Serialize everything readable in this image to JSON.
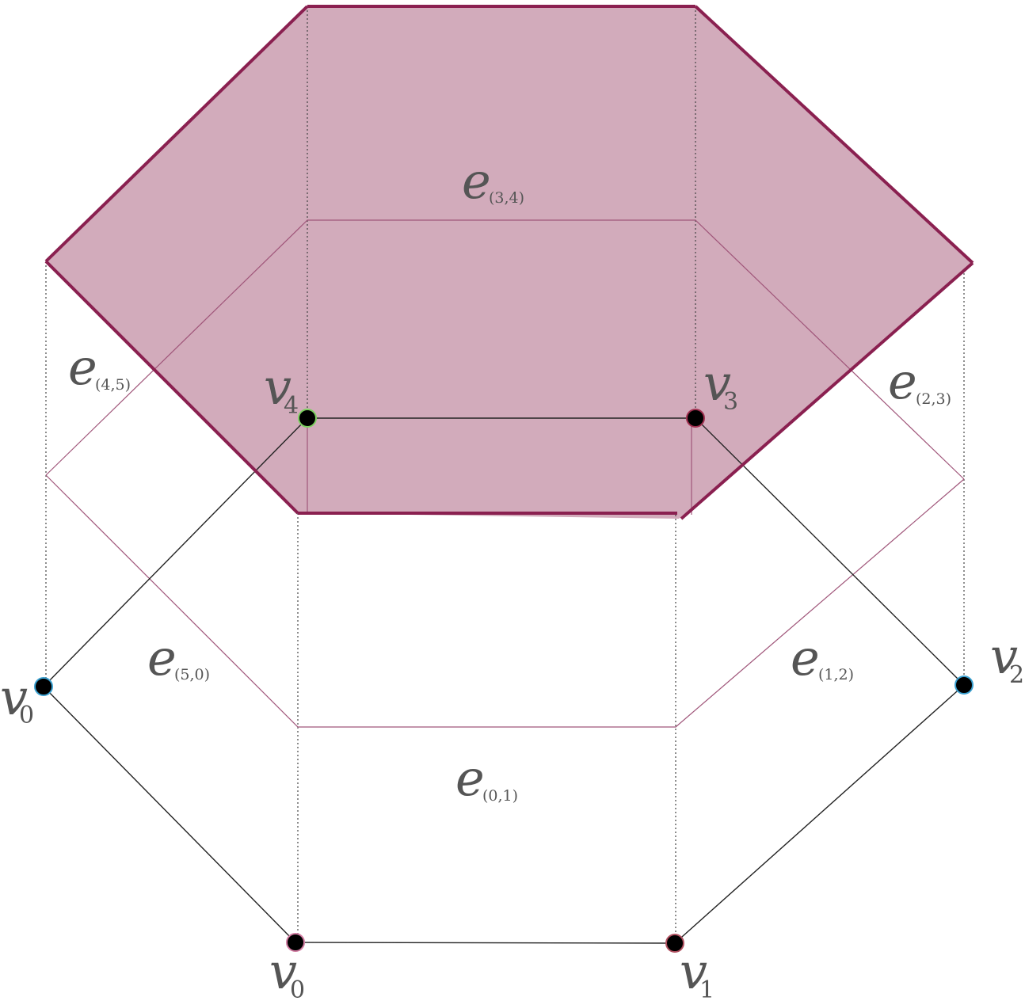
{
  "colors": {
    "fill": "#d2abbb",
    "outline": "#8a2050",
    "thin_line": "#a0567a",
    "edge_black": "#222222",
    "dotted": "#444444",
    "vertex": "#000000",
    "label": "#555555"
  },
  "vertices": [
    {
      "id": "v0-left",
      "main": "v",
      "sub": "0",
      "ring": "#3aa0d0"
    },
    {
      "id": "v0-bottom",
      "main": "v",
      "sub": "0",
      "ring": "#d07aa0"
    },
    {
      "id": "v1",
      "main": "v",
      "sub": "1",
      "ring": "#b05060"
    },
    {
      "id": "v2",
      "main": "v",
      "sub": "2",
      "ring": "#3aa0d0"
    },
    {
      "id": "v3",
      "main": "v",
      "sub": "3",
      "ring": "#a03050"
    },
    {
      "id": "v4",
      "main": "v",
      "sub": "4",
      "ring": "#7cd060"
    }
  ],
  "edges": [
    {
      "id": "e-3-4",
      "main": "e",
      "sub": "(3,4)"
    },
    {
      "id": "e-4-5",
      "main": "e",
      "sub": "(4,5)"
    },
    {
      "id": "e-2-3",
      "main": "e",
      "sub": "(2,3)"
    },
    {
      "id": "e-5-0",
      "main": "e",
      "sub": "(5,0)"
    },
    {
      "id": "e-1-2",
      "main": "e",
      "sub": "(1,2)"
    },
    {
      "id": "e-0-1",
      "main": "e",
      "sub": "(0,1)"
    }
  ]
}
